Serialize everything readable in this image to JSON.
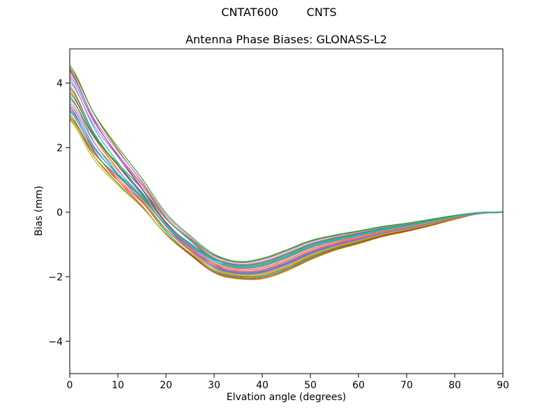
{
  "chart_data": {
    "type": "line",
    "suptitle": "CNTAT600        CNTS",
    "title": "Antenna Phase Biases: GLONASS-L2",
    "xlabel": "Elvation angle (degrees)",
    "ylabel": "Bias (mm)",
    "xlim": [
      0,
      90
    ],
    "ylim": [
      -5.0,
      5.06
    ],
    "xticks": [
      0,
      10,
      20,
      30,
      40,
      50,
      60,
      70,
      80,
      90
    ],
    "xtick_labels": [
      "0",
      "10",
      "20",
      "30",
      "40",
      "50",
      "60",
      "70",
      "80",
      "90"
    ],
    "yticks": [
      -4,
      -2,
      0,
      2,
      4
    ],
    "ytick_labels": [
      "−4",
      "−2",
      "0",
      "2",
      "4"
    ],
    "grid": false,
    "legend": "none",
    "n_lines": 24,
    "elevation_deg": [
      0,
      5,
      10,
      15,
      20,
      25,
      30,
      35,
      40,
      45,
      50,
      55,
      60,
      65,
      70,
      75,
      80,
      85,
      90
    ],
    "mean_bias_mm": [
      3.7,
      2.35,
      1.4,
      0.55,
      -0.4,
      -1.05,
      -1.6,
      -1.8,
      -1.75,
      -1.5,
      -1.18,
      -0.95,
      -0.78,
      -0.6,
      -0.47,
      -0.32,
      -0.16,
      -0.03,
      0.0
    ],
    "spread_half_mm": [
      0.85,
      0.78,
      0.66,
      0.52,
      0.38,
      0.33,
      0.3,
      0.27,
      0.32,
      0.33,
      0.3,
      0.24,
      0.2,
      0.16,
      0.13,
      0.1,
      0.06,
      0.02,
      0.01
    ],
    "crossover_deg": 32,
    "series": [
      {
        "color": "#808000",
        "f_start": 1.0,
        "f_dip": 0.4
      },
      {
        "color": "#2ca02c",
        "f_start": 0.9,
        "f_dip": 1.0
      },
      {
        "color": "#d62728",
        "f_start": 0.8,
        "f_dip": -0.1
      },
      {
        "color": "#e377c2",
        "f_start": 0.7,
        "f_dip": 0.85
      },
      {
        "color": "#9467bd",
        "f_start": 0.6,
        "f_dip": 0.55
      },
      {
        "color": "#17becf",
        "f_start": 0.5,
        "f_dip": -0.45
      },
      {
        "color": "#da70d6",
        "f_start": 0.4,
        "f_dip": 0.7
      },
      {
        "color": "#bcbd22",
        "f_start": 0.3,
        "f_dip": -1.0
      },
      {
        "color": "#1f77b4",
        "f_start": 0.2,
        "f_dip": -0.25
      },
      {
        "color": "#ff7f0e",
        "f_start": 0.1,
        "f_dip": -0.6
      },
      {
        "color": "#8c564b",
        "f_start": 0.0,
        "f_dip": 0.25
      },
      {
        "color": "#20b2aa",
        "f_start": -0.1,
        "f_dip": -0.8
      },
      {
        "color": "#2ca02c",
        "f_start": -0.2,
        "f_dip": 0.95
      },
      {
        "color": "#e377c2",
        "f_start": -0.3,
        "f_dip": 0.1
      },
      {
        "color": "#9467bd",
        "f_start": -0.4,
        "f_dip": -0.35
      },
      {
        "color": "#d62728",
        "f_start": -0.5,
        "f_dip": -0.9
      },
      {
        "color": "#17becf",
        "f_start": -0.6,
        "f_dip": 0.3
      },
      {
        "color": "#da70d6",
        "f_start": -0.7,
        "f_dip": -0.15
      },
      {
        "color": "#808000",
        "f_start": -0.8,
        "f_dip": -0.7
      },
      {
        "color": "#2ca02c",
        "f_start": -0.9,
        "f_dip": 0.6
      },
      {
        "color": "#bcbd22",
        "f_start": -1.0,
        "f_dip": -0.5
      },
      {
        "color": "#ff7f0e",
        "f_start": -0.95,
        "f_dip": 0.05
      },
      {
        "color": "#9467bd",
        "f_start": 0.85,
        "f_dip": -0.3
      },
      {
        "color": "#17becf",
        "f_start": -0.65,
        "f_dip": 0.45
      }
    ],
    "colors": {
      "background": "#ffffff",
      "spine": "#000000",
      "text": "#000000"
    }
  }
}
